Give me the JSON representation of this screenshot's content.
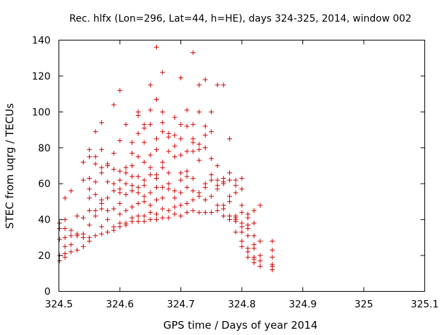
{
  "chart_data": {
    "type": "scatter",
    "title": "Rec. hlfx (Lon=296, Lat=44, h=HE), days 324-325, 2014, window 002",
    "xlabel": "GPS time / Days of year 2014",
    "ylabel": "STEC from uqrg / TECUs",
    "xlim": [
      324.5,
      325.1
    ],
    "ylim": [
      0,
      140
    ],
    "xticks": [
      "324.5",
      "324.6",
      "324.7",
      "324.8",
      "324.9",
      "325",
      "325.1"
    ],
    "yticks": [
      "0",
      "20",
      "40",
      "60",
      "80",
      "100",
      "120",
      "140"
    ],
    "grid": false,
    "legend": "none",
    "marker": "+",
    "marker_color": "#d40000",
    "points": [
      [
        324.501,
        17
      ],
      [
        324.501,
        20
      ],
      [
        324.501,
        29
      ],
      [
        324.501,
        35
      ],
      [
        324.501,
        38
      ],
      [
        324.51,
        19
      ],
      [
        324.51,
        21
      ],
      [
        324.51,
        25
      ],
      [
        324.51,
        30
      ],
      [
        324.51,
        35
      ],
      [
        324.51,
        40
      ],
      [
        324.51,
        52
      ],
      [
        324.52,
        22
      ],
      [
        324.52,
        26
      ],
      [
        324.52,
        31
      ],
      [
        324.52,
        34
      ],
      [
        324.52,
        56
      ],
      [
        324.53,
        23
      ],
      [
        324.53,
        31
      ],
      [
        324.53,
        32
      ],
      [
        324.53,
        42
      ],
      [
        324.54,
        25
      ],
      [
        324.54,
        30
      ],
      [
        324.54,
        32
      ],
      [
        324.54,
        41
      ],
      [
        324.54,
        62
      ],
      [
        324.54,
        72
      ],
      [
        324.55,
        28
      ],
      [
        324.55,
        30
      ],
      [
        324.55,
        37
      ],
      [
        324.55,
        45
      ],
      [
        324.55,
        52
      ],
      [
        324.55,
        57
      ],
      [
        324.55,
        63
      ],
      [
        324.55,
        75
      ],
      [
        324.55,
        79
      ],
      [
        324.56,
        31
      ],
      [
        324.56,
        42
      ],
      [
        324.56,
        45
      ],
      [
        324.56,
        54
      ],
      [
        324.56,
        61
      ],
      [
        324.56,
        71
      ],
      [
        324.56,
        75
      ],
      [
        324.56,
        89
      ],
      [
        324.57,
        32
      ],
      [
        324.57,
        36
      ],
      [
        324.57,
        46
      ],
      [
        324.57,
        49
      ],
      [
        324.57,
        51
      ],
      [
        324.57,
        66
      ],
      [
        324.57,
        69
      ],
      [
        324.57,
        79
      ],
      [
        324.57,
        94
      ],
      [
        324.58,
        33
      ],
      [
        324.58,
        40
      ],
      [
        324.58,
        45
      ],
      [
        324.58,
        52
      ],
      [
        324.58,
        61
      ],
      [
        324.58,
        70
      ],
      [
        324.58,
        71
      ],
      [
        324.59,
        34
      ],
      [
        324.59,
        36
      ],
      [
        324.59,
        46
      ],
      [
        324.59,
        56
      ],
      [
        324.59,
        60
      ],
      [
        324.59,
        68
      ],
      [
        324.59,
        77
      ],
      [
        324.59,
        104
      ],
      [
        324.6,
        36
      ],
      [
        324.6,
        38
      ],
      [
        324.6,
        43
      ],
      [
        324.6,
        49
      ],
      [
        324.6,
        55
      ],
      [
        324.6,
        57
      ],
      [
        324.6,
        62
      ],
      [
        324.6,
        67
      ],
      [
        324.6,
        84
      ],
      [
        324.6,
        112
      ],
      [
        324.61,
        37
      ],
      [
        324.61,
        38
      ],
      [
        324.61,
        45
      ],
      [
        324.61,
        54
      ],
      [
        324.61,
        60
      ],
      [
        324.61,
        66
      ],
      [
        324.61,
        69
      ],
      [
        324.61,
        93
      ],
      [
        324.62,
        39
      ],
      [
        324.62,
        41
      ],
      [
        324.62,
        47
      ],
      [
        324.62,
        56
      ],
      [
        324.62,
        59
      ],
      [
        324.62,
        64
      ],
      [
        324.62,
        70
      ],
      [
        324.62,
        77
      ],
      [
        324.62,
        83
      ],
      [
        324.63,
        39
      ],
      [
        324.63,
        42
      ],
      [
        324.63,
        49
      ],
      [
        324.63,
        55
      ],
      [
        324.63,
        58
      ],
      [
        324.63,
        64
      ],
      [
        324.63,
        75
      ],
      [
        324.63,
        88
      ],
      [
        324.63,
        98
      ],
      [
        324.63,
        100
      ],
      [
        324.64,
        39
      ],
      [
        324.64,
        42
      ],
      [
        324.64,
        50
      ],
      [
        324.64,
        53
      ],
      [
        324.64,
        59
      ],
      [
        324.64,
        62
      ],
      [
        324.64,
        72
      ],
      [
        324.64,
        83
      ],
      [
        324.64,
        91
      ],
      [
        324.64,
        93
      ],
      [
        324.65,
        40
      ],
      [
        324.65,
        44
      ],
      [
        324.65,
        48
      ],
      [
        324.65,
        55
      ],
      [
        324.65,
        65
      ],
      [
        324.65,
        69
      ],
      [
        324.65,
        76
      ],
      [
        324.65,
        93
      ],
      [
        324.65,
        101
      ],
      [
        324.65,
        115
      ],
      [
        324.66,
        40
      ],
      [
        324.66,
        43
      ],
      [
        324.66,
        51
      ],
      [
        324.66,
        58
      ],
      [
        324.66,
        63
      ],
      [
        324.66,
        65
      ],
      [
        324.66,
        79
      ],
      [
        324.66,
        85
      ],
      [
        324.66,
        107
      ],
      [
        324.66,
        136
      ],
      [
        324.67,
        41
      ],
      [
        324.67,
        46
      ],
      [
        324.67,
        52
      ],
      [
        324.67,
        58
      ],
      [
        324.67,
        69
      ],
      [
        324.67,
        72
      ],
      [
        324.67,
        89
      ],
      [
        324.67,
        94
      ],
      [
        324.67,
        100
      ],
      [
        324.67,
        122
      ],
      [
        324.68,
        41
      ],
      [
        324.68,
        45
      ],
      [
        324.68,
        57
      ],
      [
        324.68,
        60
      ],
      [
        324.68,
        66
      ],
      [
        324.68,
        78
      ],
      [
        324.68,
        86
      ],
      [
        324.68,
        88
      ],
      [
        324.69,
        43
      ],
      [
        324.69,
        47
      ],
      [
        324.69,
        52
      ],
      [
        324.69,
        56
      ],
      [
        324.69,
        75
      ],
      [
        324.69,
        81
      ],
      [
        324.69,
        87
      ],
      [
        324.69,
        97
      ],
      [
        324.7,
        42
      ],
      [
        324.7,
        48
      ],
      [
        324.7,
        55
      ],
      [
        324.7,
        62
      ],
      [
        324.7,
        66
      ],
      [
        324.7,
        76
      ],
      [
        324.7,
        85
      ],
      [
        324.7,
        93
      ],
      [
        324.7,
        119
      ],
      [
        324.71,
        44
      ],
      [
        324.71,
        49
      ],
      [
        324.71,
        58
      ],
      [
        324.71,
        64
      ],
      [
        324.71,
        67
      ],
      [
        324.71,
        78
      ],
      [
        324.71,
        92
      ],
      [
        324.71,
        101
      ],
      [
        324.72,
        45
      ],
      [
        324.72,
        51
      ],
      [
        324.72,
        56
      ],
      [
        324.72,
        63
      ],
      [
        324.72,
        78
      ],
      [
        324.72,
        83
      ],
      [
        324.72,
        85
      ],
      [
        324.72,
        93
      ],
      [
        324.72,
        133
      ],
      [
        324.73,
        44
      ],
      [
        324.73,
        53
      ],
      [
        324.73,
        55
      ],
      [
        324.73,
        73
      ],
      [
        324.73,
        79
      ],
      [
        324.73,
        82
      ],
      [
        324.73,
        100
      ],
      [
        324.73,
        115
      ],
      [
        324.74,
        44
      ],
      [
        324.74,
        51
      ],
      [
        324.74,
        58
      ],
      [
        324.74,
        60
      ],
      [
        324.74,
        80
      ],
      [
        324.74,
        87
      ],
      [
        324.74,
        92
      ],
      [
        324.74,
        118
      ],
      [
        324.75,
        44
      ],
      [
        324.75,
        53
      ],
      [
        324.75,
        62
      ],
      [
        324.75,
        65
      ],
      [
        324.75,
        74
      ],
      [
        324.75,
        89
      ],
      [
        324.75,
        100
      ],
      [
        324.76,
        45
      ],
      [
        324.76,
        48
      ],
      [
        324.76,
        57
      ],
      [
        324.76,
        59
      ],
      [
        324.76,
        62
      ],
      [
        324.76,
        70
      ],
      [
        324.76,
        115
      ],
      [
        324.77,
        42
      ],
      [
        324.77,
        46
      ],
      [
        324.77,
        48
      ],
      [
        324.77,
        60
      ],
      [
        324.77,
        61
      ],
      [
        324.77,
        63
      ],
      [
        324.77,
        115
      ],
      [
        324.78,
        40
      ],
      [
        324.78,
        42
      ],
      [
        324.78,
        50
      ],
      [
        324.78,
        53
      ],
      [
        324.78,
        62
      ],
      [
        324.78,
        66
      ],
      [
        324.78,
        85
      ],
      [
        324.79,
        33
      ],
      [
        324.79,
        39
      ],
      [
        324.79,
        40
      ],
      [
        324.79,
        41
      ],
      [
        324.79,
        42
      ],
      [
        324.79,
        55
      ],
      [
        324.79,
        59
      ],
      [
        324.79,
        62
      ],
      [
        324.8,
        25
      ],
      [
        324.8,
        28
      ],
      [
        324.8,
        33
      ],
      [
        324.8,
        36
      ],
      [
        324.8,
        38
      ],
      [
        324.8,
        44
      ],
      [
        324.8,
        48
      ],
      [
        324.8,
        57
      ],
      [
        324.8,
        63
      ],
      [
        324.81,
        19
      ],
      [
        324.81,
        22
      ],
      [
        324.81,
        24
      ],
      [
        324.81,
        31
      ],
      [
        324.81,
        35
      ],
      [
        324.81,
        37
      ],
      [
        324.81,
        41
      ],
      [
        324.81,
        43
      ],
      [
        324.82,
        16
      ],
      [
        324.82,
        18
      ],
      [
        324.82,
        19
      ],
      [
        324.82,
        24
      ],
      [
        324.82,
        26
      ],
      [
        324.82,
        31
      ],
      [
        324.82,
        38
      ],
      [
        324.82,
        45
      ],
      [
        324.83,
        14
      ],
      [
        324.83,
        17
      ],
      [
        324.83,
        20
      ],
      [
        324.83,
        28
      ],
      [
        324.83,
        48
      ],
      [
        324.85,
        12
      ],
      [
        324.85,
        14
      ],
      [
        324.85,
        15
      ],
      [
        324.85,
        19
      ],
      [
        324.85,
        23
      ],
      [
        324.85,
        28
      ]
    ]
  }
}
